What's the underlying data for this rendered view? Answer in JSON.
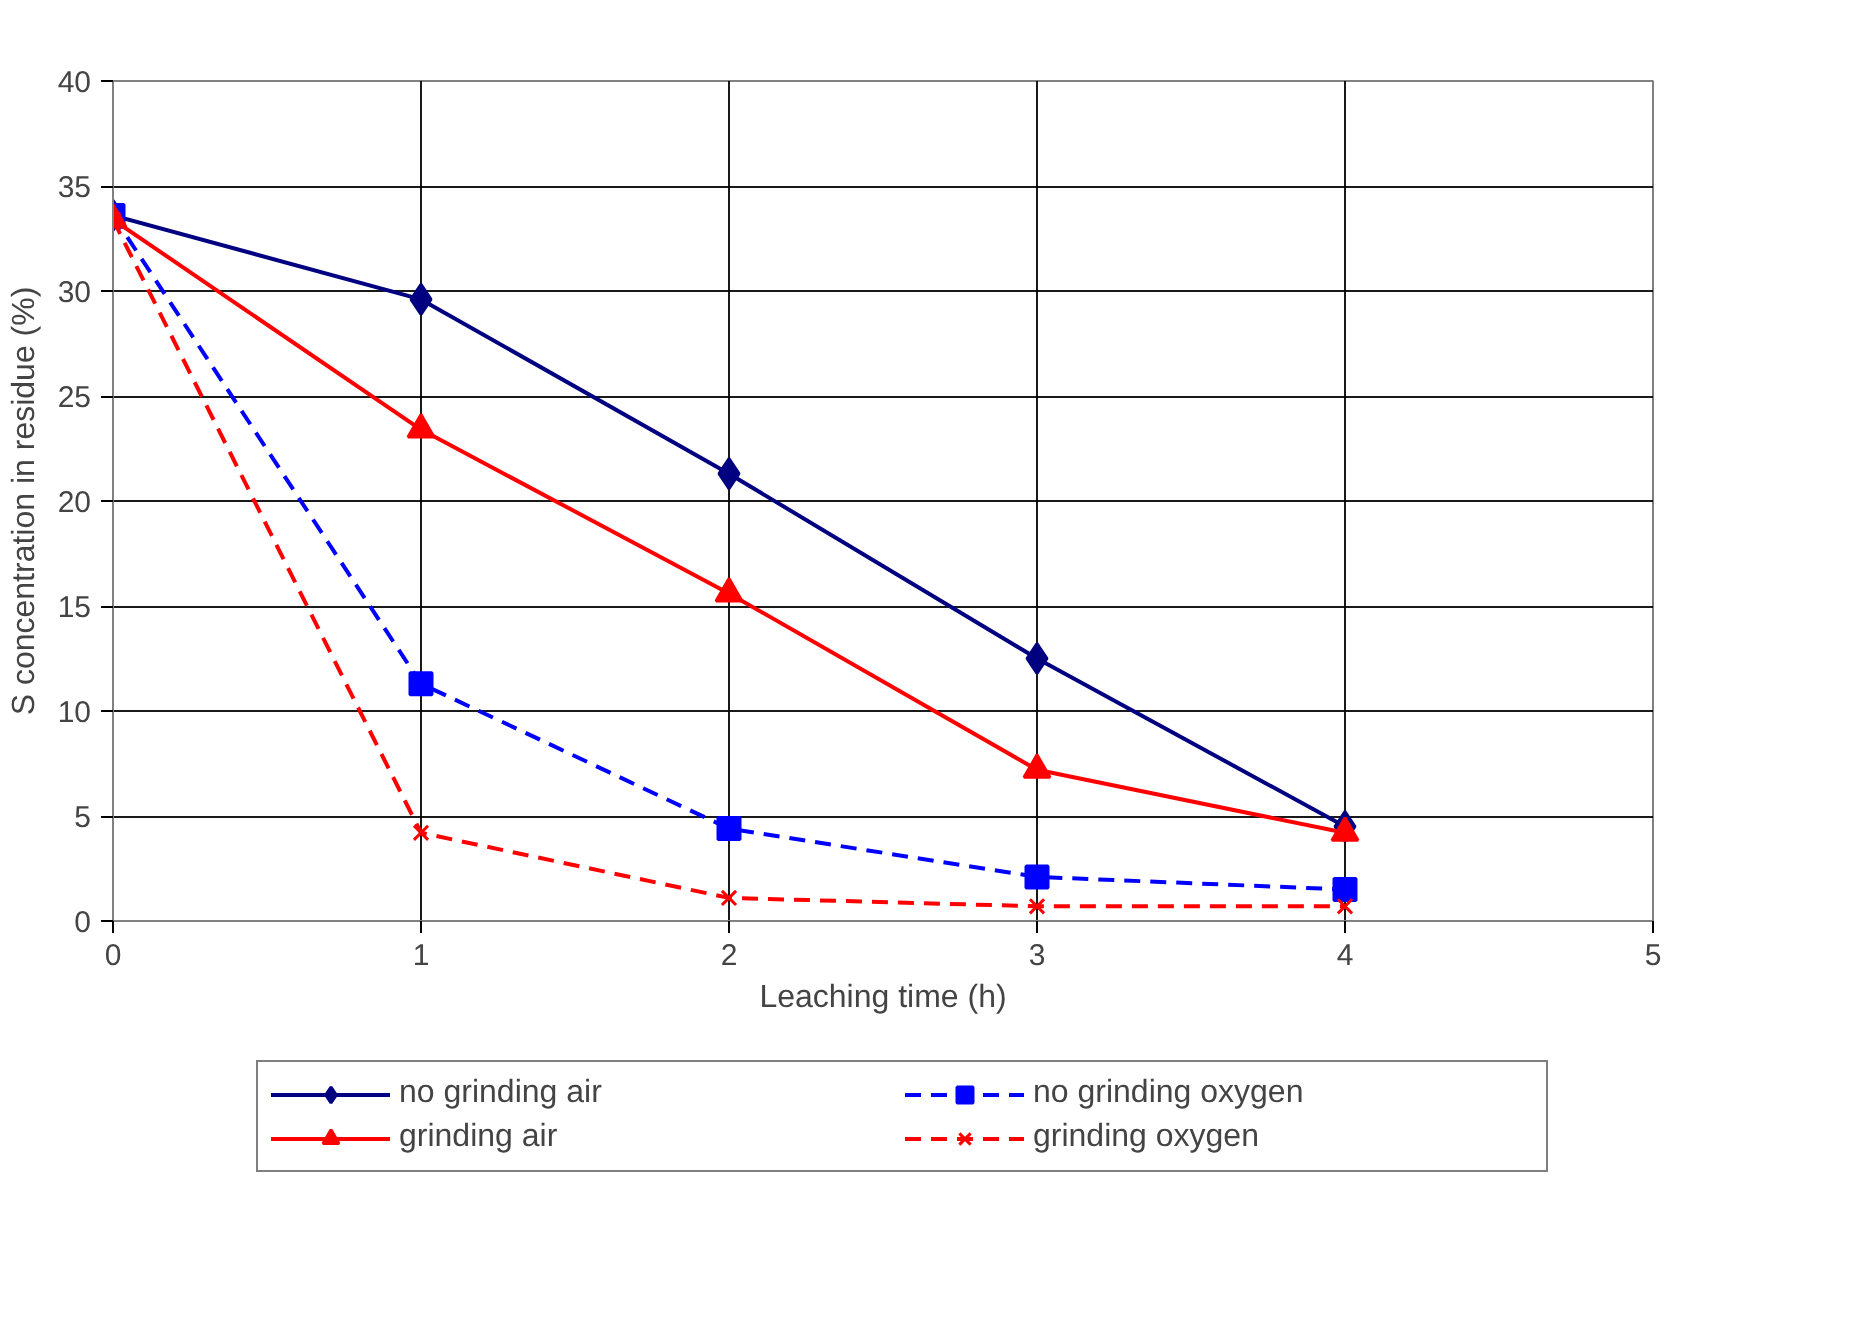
{
  "chart_data": {
    "type": "line",
    "xlabel": "Leaching time (h)",
    "ylabel": "S concentration in residue (%)",
    "x": [
      0,
      1,
      2,
      3,
      4
    ],
    "series": [
      {
        "name": "no grinding air",
        "color": "#000080",
        "marker": "diamond",
        "line_style": "solid",
        "values": [
          33.6,
          29.6,
          21.3,
          12.5,
          4.5
        ]
      },
      {
        "name": "no grinding oxygen",
        "color": "#0000ff",
        "marker": "square",
        "line_style": "dashed",
        "values": [
          33.6,
          11.3,
          4.4,
          2.1,
          1.5
        ]
      },
      {
        "name": "grinding air",
        "color": "#ff0000",
        "marker": "triangle",
        "line_style": "solid",
        "values": [
          33.4,
          23.4,
          15.6,
          7.2,
          4.2
        ]
      },
      {
        "name": "grinding oxygen",
        "color": "#ff0000",
        "marker": "cross",
        "line_style": "dashed",
        "values": [
          33.4,
          4.2,
          1.1,
          0.7,
          0.7
        ]
      }
    ],
    "xlim": [
      0,
      5
    ],
    "xticks": [
      0,
      1,
      2,
      3,
      4,
      5
    ],
    "ylim": [
      0,
      40
    ],
    "yticks": [
      0,
      5,
      10,
      15,
      20,
      25,
      30,
      35,
      40
    ],
    "grid": true,
    "legend": "bottom"
  }
}
